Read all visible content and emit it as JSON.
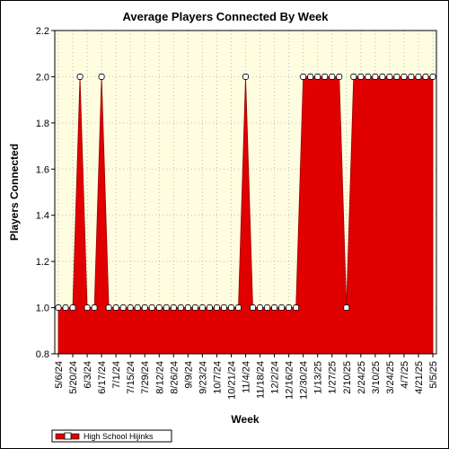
{
  "chart_data": {
    "type": "area",
    "title": "Average Players Connected By Week",
    "xlabel": "Week",
    "ylabel": "Players Connected",
    "ylim": [
      0.8,
      2.2
    ],
    "yticks": [
      "0.8",
      "1.0",
      "1.2",
      "1.4",
      "1.6",
      "1.8",
      "2.0",
      "2.2"
    ],
    "xtick_labels": [
      "5/6/24",
      "5/20/24",
      "6/3/24",
      "6/17/24",
      "7/1/24",
      "7/15/24",
      "7/29/24",
      "8/12/24",
      "8/26/24",
      "9/9/24",
      "9/23/24",
      "10/7/24",
      "10/21/24",
      "11/4/24",
      "11/18/24",
      "12/2/24",
      "12/16/24",
      "12/30/24",
      "1/13/25",
      "1/27/25",
      "2/10/25",
      "2/24/25",
      "3/10/25",
      "3/24/25",
      "4/7/25",
      "4/21/25",
      "5/5/25"
    ],
    "grid": true,
    "legend_position": "bottom-left",
    "colors": {
      "fill": "#e00000",
      "marker": "#ffffff",
      "plot_bg": "#fffde0"
    },
    "series": [
      {
        "name": "High School Hijinks",
        "weeks": [
          "5/6/24",
          "5/13/24",
          "5/20/24",
          "5/27/24",
          "6/3/24",
          "6/10/24",
          "6/17/24",
          "6/24/24",
          "7/1/24",
          "7/8/24",
          "7/15/24",
          "7/22/24",
          "7/29/24",
          "8/5/24",
          "8/12/24",
          "8/19/24",
          "8/26/24",
          "9/2/24",
          "9/9/24",
          "9/16/24",
          "9/23/24",
          "9/30/24",
          "10/7/24",
          "10/14/24",
          "10/21/24",
          "10/28/24",
          "11/4/24",
          "11/11/24",
          "11/18/24",
          "11/25/24",
          "12/2/24",
          "12/9/24",
          "12/16/24",
          "12/23/24",
          "12/30/24",
          "1/6/25",
          "1/13/25",
          "1/20/25",
          "1/27/25",
          "2/3/25",
          "2/10/25",
          "2/17/25",
          "2/24/25",
          "3/3/25",
          "3/10/25",
          "3/17/25",
          "3/24/25",
          "3/31/25",
          "4/7/25",
          "4/14/25",
          "4/21/25",
          "4/28/25",
          "5/5/25"
        ],
        "values": [
          1,
          1,
          1,
          2,
          1,
          1,
          2,
          1,
          1,
          1,
          1,
          1,
          1,
          1,
          1,
          1,
          1,
          1,
          1,
          1,
          1,
          1,
          1,
          1,
          1,
          1,
          2,
          1,
          1,
          1,
          1,
          1,
          1,
          1,
          2,
          2,
          2,
          2,
          2,
          2,
          1,
          2,
          2,
          2,
          2,
          2,
          2,
          2,
          2,
          2,
          2,
          2,
          2
        ]
      }
    ]
  }
}
